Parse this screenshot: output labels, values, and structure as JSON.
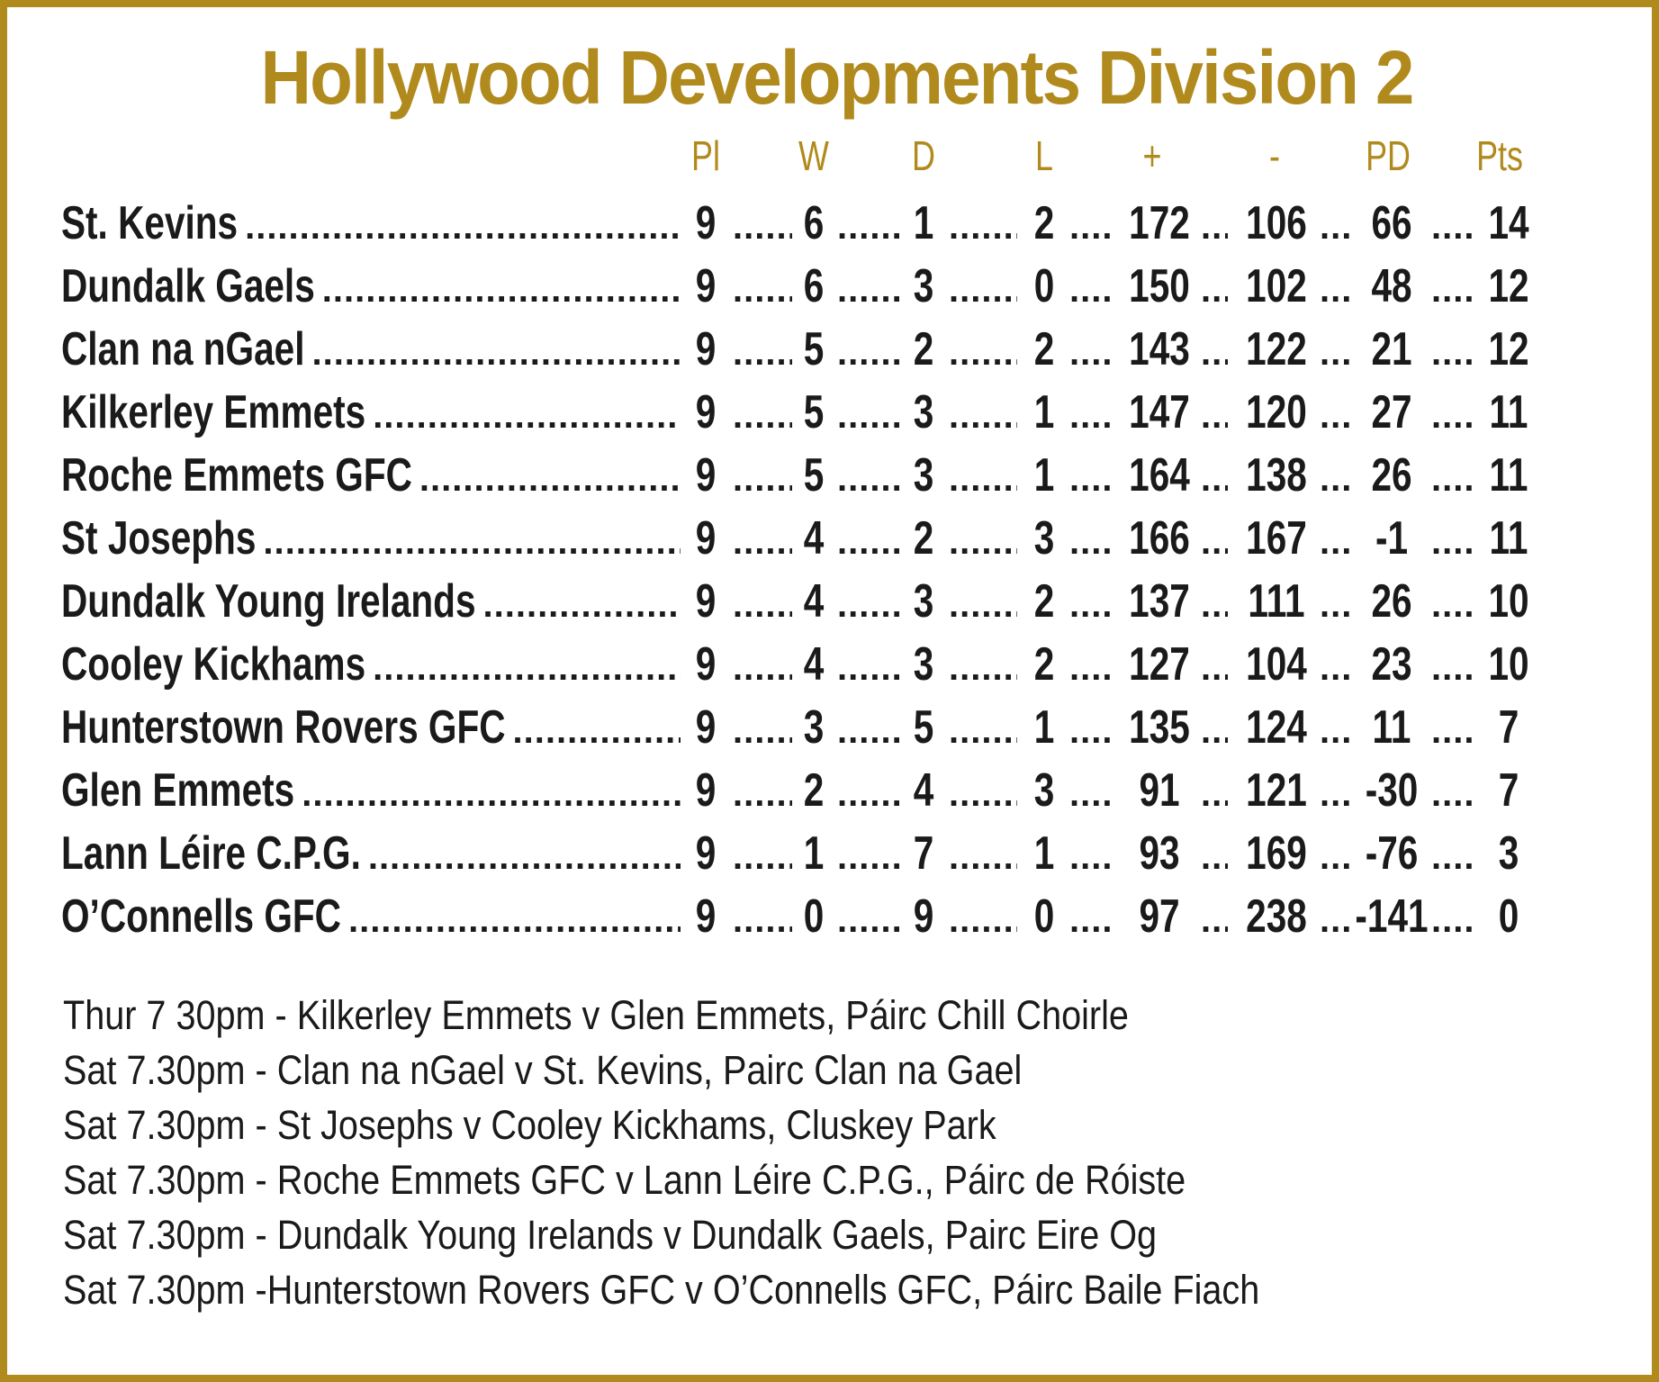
{
  "title": "Hollywood Developments Division 2",
  "headers": {
    "pl": "Pl",
    "w": "W",
    "d": "D",
    "l": "L",
    "plus": "+",
    "minus": "-",
    "pd": "PD",
    "pts": "Pts"
  },
  "rows": [
    {
      "team": "St. Kevins",
      "pl": "9",
      "w": "6",
      "d": "1",
      "l": "2",
      "plus": "172",
      "minus": "106",
      "pd": "66",
      "pts": "14"
    },
    {
      "team": "Dundalk Gaels",
      "pl": "9",
      "w": "6",
      "d": "3",
      "l": "0",
      "plus": "150",
      "minus": "102",
      "pd": "48",
      "pts": "12"
    },
    {
      "team": "Clan na nGael",
      "pl": "9",
      "w": "5",
      "d": "2",
      "l": "2",
      "plus": "143",
      "minus": "122",
      "pd": "21",
      "pts": "12"
    },
    {
      "team": "Kilkerley Emmets",
      "pl": "9",
      "w": "5",
      "d": "3",
      "l": "1",
      "plus": "147",
      "minus": "120",
      "pd": "27",
      "pts": "11"
    },
    {
      "team": "Roche Emmets GFC",
      "pl": "9",
      "w": "5",
      "d": "3",
      "l": "1",
      "plus": "164",
      "minus": "138",
      "pd": "26",
      "pts": "11"
    },
    {
      "team": "St Josephs",
      "pl": "9",
      "w": "4",
      "d": "2",
      "l": "3",
      "plus": "166",
      "minus": "167",
      "pd": "-1",
      "pts": "11"
    },
    {
      "team": "Dundalk Young Irelands",
      "pl": "9",
      "w": "4",
      "d": "3",
      "l": "2",
      "plus": "137",
      "minus": "111",
      "pd": "26",
      "pts": "10"
    },
    {
      "team": "Cooley Kickhams",
      "pl": "9",
      "w": "4",
      "d": "3",
      "l": "2",
      "plus": "127",
      "minus": "104",
      "pd": "23",
      "pts": "10"
    },
    {
      "team": "Hunterstown Rovers GFC",
      "pl": "9",
      "w": "3",
      "d": "5",
      "l": "1",
      "plus": "135",
      "minus": "124",
      "pd": "11",
      "pts": "7"
    },
    {
      "team": "Glen Emmets",
      "pl": "9",
      "w": "2",
      "d": "4",
      "l": "3",
      "plus": "91",
      "minus": "121",
      "pd": "-30",
      "pts": "7"
    },
    {
      "team": "Lann Léire C.P.G.",
      "pl": "9",
      "w": "1",
      "d": "7",
      "l": "1",
      "plus": "93",
      "minus": "169",
      "pd": "-76",
      "pts": "3"
    },
    {
      "team": "O’Connells GFC",
      "pl": "9",
      "w": "0",
      "d": "9",
      "l": "0",
      "plus": "97",
      "minus": "238",
      "pd": "-141",
      "pts": "0"
    }
  ],
  "fixtures": [
    "Thur 7 30pm - Kilkerley Emmets v Glen Emmets, Páirc Chill Choirle",
    "Sat 7.30pm - Clan na nGael v St. Kevins, Pairc Clan na Gael",
    "Sat 7.30pm - St Josephs v Cooley Kickhams, Cluskey Park",
    "Sat 7.30pm - Roche Emmets GFC v Lann Léire C.P.G., Páirc de Róiste",
    "Sat 7.30pm - Dundalk Young Irelands v Dundalk Gaels, Pairc Eire Og",
    "Sat 7.30pm -Hunterstown Rovers GFC v O’Connells GFC, Páirc Baile Fiach"
  ]
}
